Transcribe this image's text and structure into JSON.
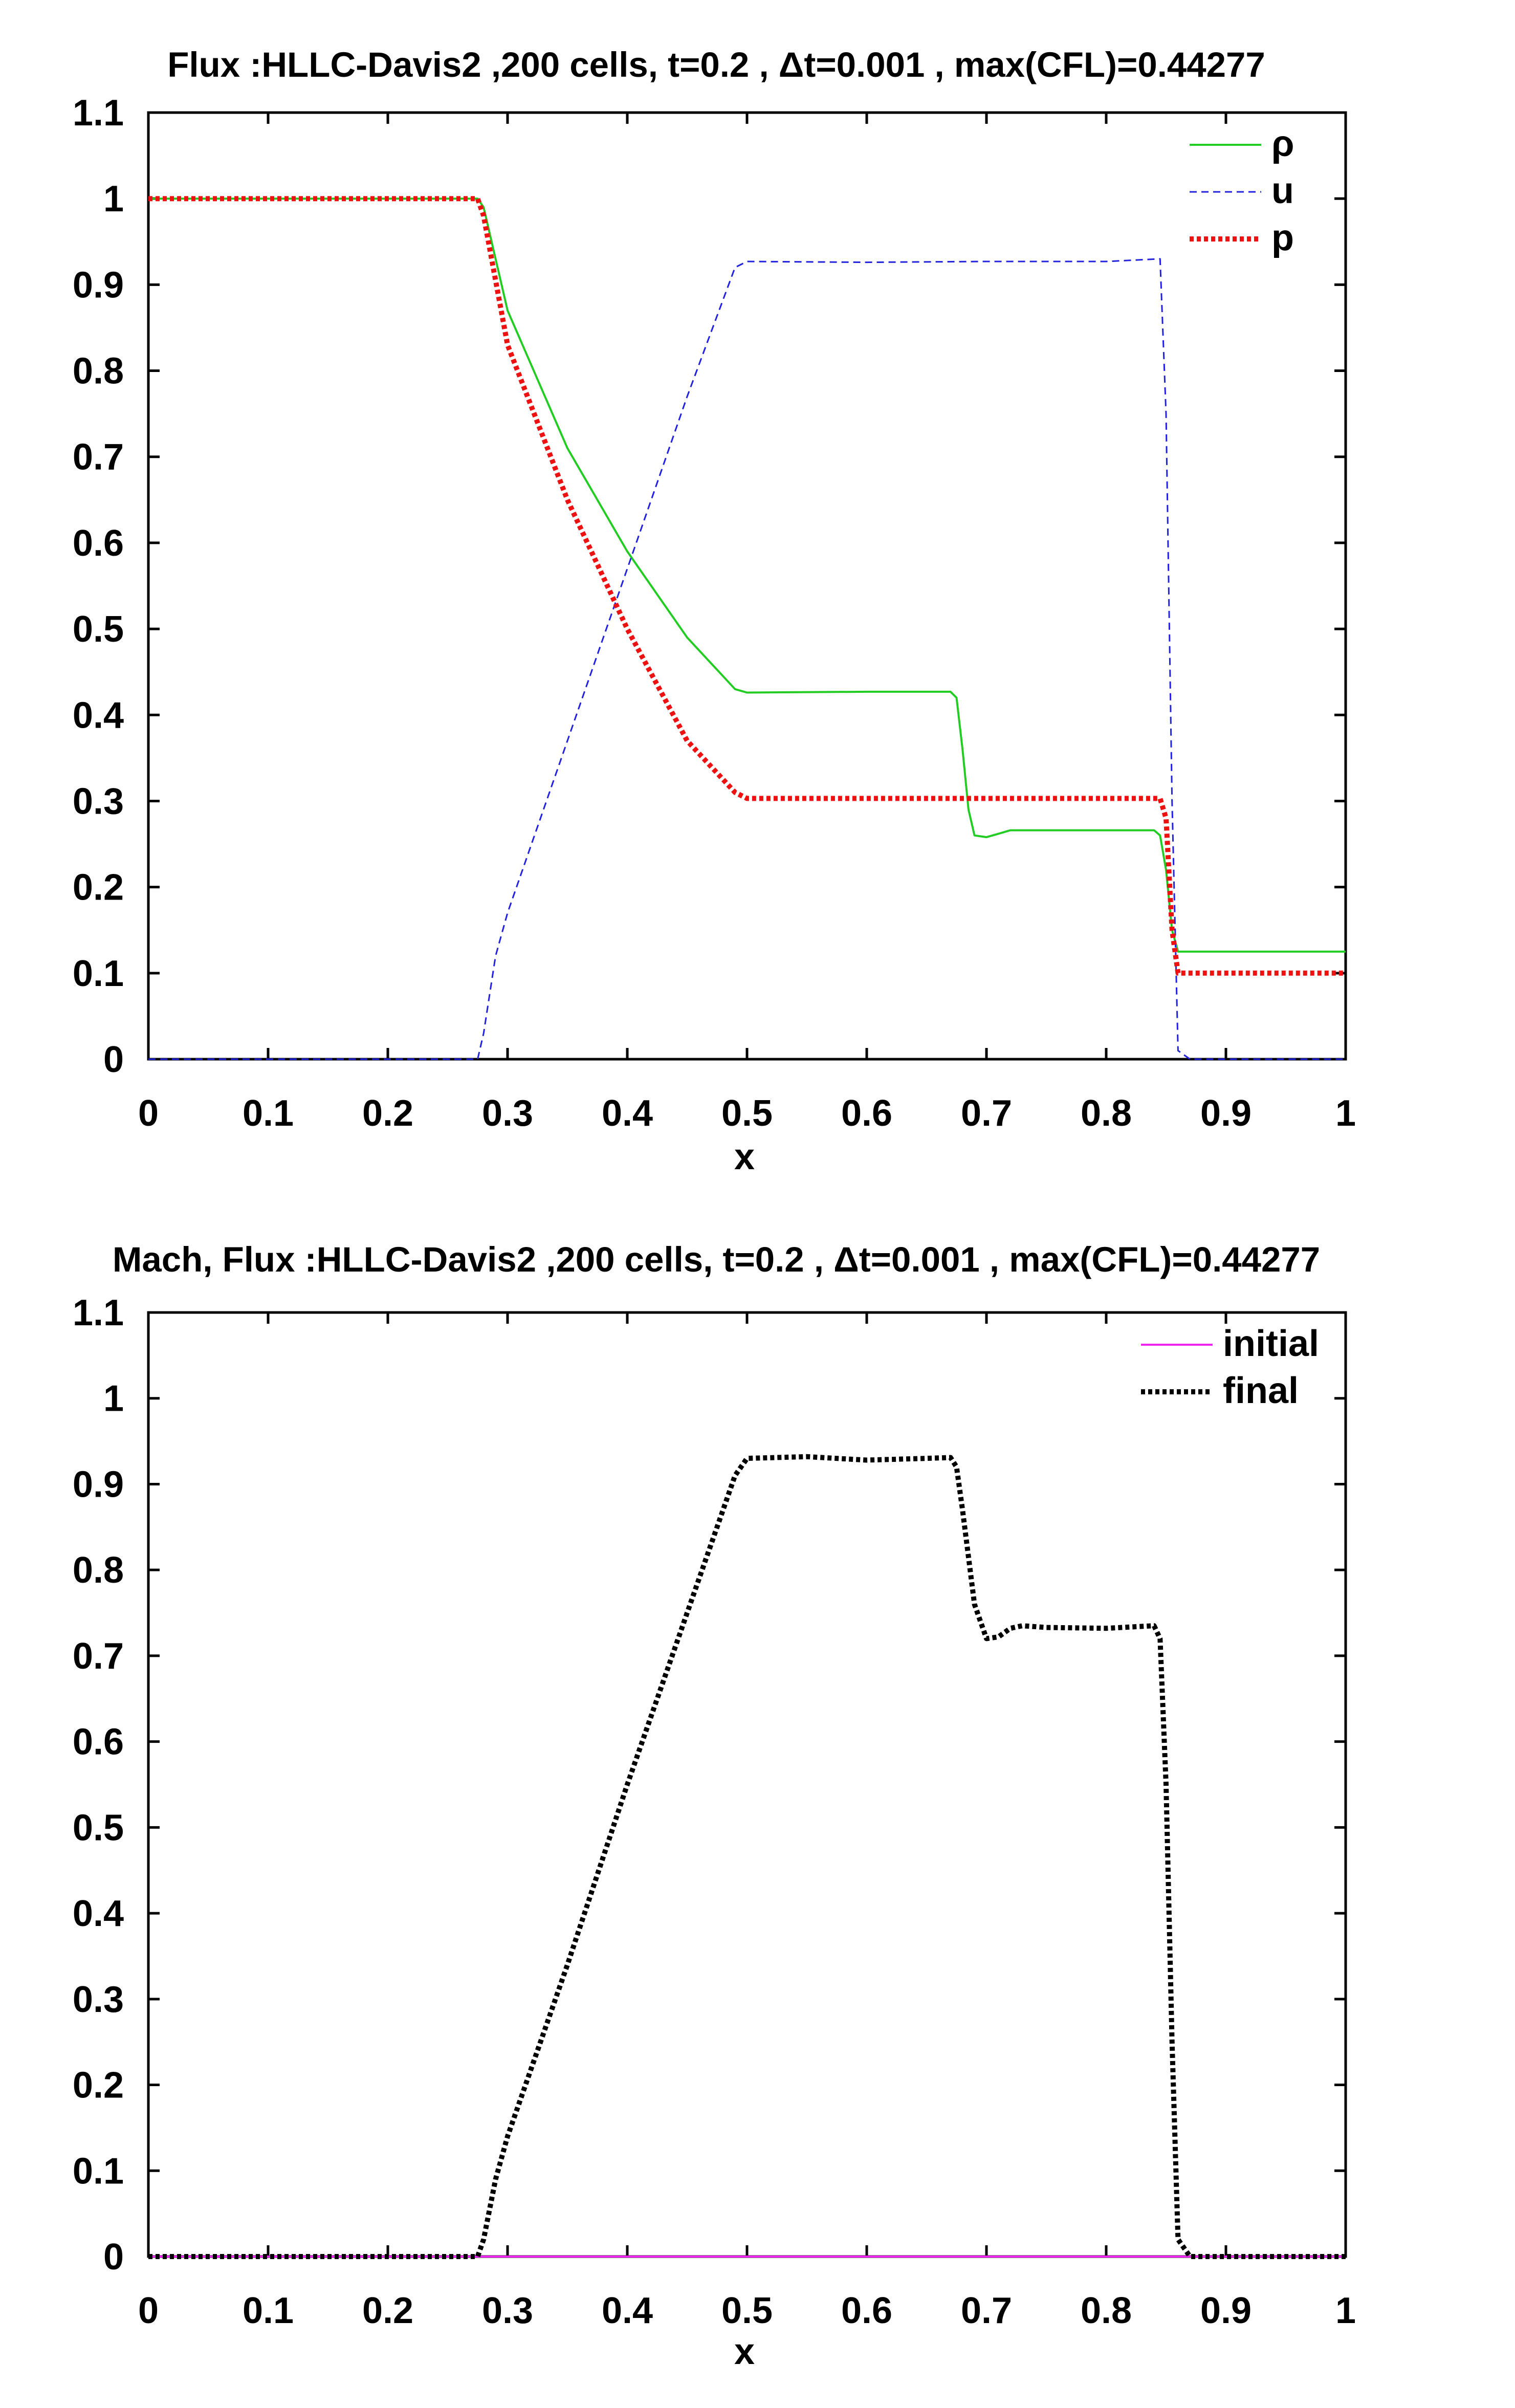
{
  "chart_data": [
    {
      "type": "line",
      "title": "Flux :HLLC-Davis2  ,200 cells, t=0.2 , Δt=0.001 , max(CFL)=0.44277",
      "xlabel": "x",
      "ylabel": "",
      "xlim": [
        0,
        1
      ],
      "ylim": [
        0,
        1.1
      ],
      "xticks": [
        "0",
        "0.1",
        "0.2",
        "0.3",
        "0.4",
        "0.5",
        "0.6",
        "0.7",
        "0.8",
        "0.9",
        "1"
      ],
      "yticks": [
        "0",
        "0.1",
        "0.2",
        "0.3",
        "0.4",
        "0.5",
        "0.6",
        "0.7",
        "0.8",
        "0.9",
        "1",
        "1.1"
      ],
      "legend_position": "top-right",
      "series": [
        {
          "name": "ρ",
          "color": "#22cc22",
          "style": "solid",
          "x": [
            0,
            0.275,
            0.28,
            0.29,
            0.3,
            0.35,
            0.4,
            0.45,
            0.49,
            0.5,
            0.6,
            0.67,
            0.675,
            0.68,
            0.685,
            0.69,
            0.7,
            0.71,
            0.72,
            0.75,
            0.84,
            0.845,
            0.85,
            0.855,
            0.86,
            0.9,
            1
          ],
          "y": [
            1,
            1,
            0.99,
            0.93,
            0.87,
            0.71,
            0.59,
            0.49,
            0.43,
            0.426,
            0.427,
            0.427,
            0.42,
            0.36,
            0.29,
            0.26,
            0.258,
            0.262,
            0.266,
            0.266,
            0.266,
            0.26,
            0.22,
            0.15,
            0.125,
            0.125,
            0.125
          ]
        },
        {
          "name": "u",
          "color": "#2222dd",
          "style": "dashed",
          "x": [
            0,
            0.275,
            0.28,
            0.29,
            0.3,
            0.35,
            0.4,
            0.45,
            0.49,
            0.5,
            0.6,
            0.7,
            0.8,
            0.845,
            0.85,
            0.855,
            0.86,
            0.87,
            1
          ],
          "y": [
            0,
            0,
            0.03,
            0.12,
            0.17,
            0.37,
            0.57,
            0.77,
            0.92,
            0.927,
            0.926,
            0.927,
            0.927,
            0.93,
            0.75,
            0.3,
            0.01,
            0,
            0
          ]
        },
        {
          "name": "p",
          "color": "#ee1111",
          "style": "dotted",
          "x": [
            0,
            0.275,
            0.28,
            0.3,
            0.35,
            0.4,
            0.45,
            0.49,
            0.5,
            0.6,
            0.7,
            0.8,
            0.845,
            0.85,
            0.855,
            0.86,
            0.9,
            1
          ],
          "y": [
            1,
            1,
            0.98,
            0.83,
            0.65,
            0.5,
            0.37,
            0.31,
            0.303,
            0.303,
            0.303,
            0.303,
            0.303,
            0.28,
            0.15,
            0.1,
            0.1,
            0.1
          ]
        }
      ]
    },
    {
      "type": "line",
      "title": "Mach, Flux :HLLC-Davis2 ,200 cells, t=0.2 , Δt=0.001 , max(CFL)=0.44277",
      "xlabel": "x",
      "ylabel": "",
      "xlim": [
        0,
        1
      ],
      "ylim": [
        0,
        1.1
      ],
      "xticks": [
        "0",
        "0.1",
        "0.2",
        "0.3",
        "0.4",
        "0.5",
        "0.6",
        "0.7",
        "0.8",
        "0.9",
        "1"
      ],
      "yticks": [
        "0",
        "0.1",
        "0.2",
        "0.3",
        "0.4",
        "0.5",
        "0.6",
        "0.7",
        "0.8",
        "0.9",
        "1",
        "1.1"
      ],
      "legend_position": "top-right",
      "series": [
        {
          "name": "initial",
          "color": "#ee22ee",
          "style": "solid",
          "x": [
            0,
            1
          ],
          "y": [
            0,
            0
          ]
        },
        {
          "name": "final",
          "color": "#000000",
          "style": "dotted",
          "x": [
            0,
            0.275,
            0.28,
            0.29,
            0.3,
            0.35,
            0.4,
            0.45,
            0.49,
            0.5,
            0.55,
            0.6,
            0.65,
            0.67,
            0.675,
            0.68,
            0.69,
            0.7,
            0.71,
            0.72,
            0.73,
            0.75,
            0.8,
            0.84,
            0.845,
            0.85,
            0.855,
            0.86,
            0.87,
            1
          ],
          "y": [
            0,
            0,
            0.02,
            0.09,
            0.14,
            0.34,
            0.55,
            0.75,
            0.91,
            0.93,
            0.932,
            0.928,
            0.93,
            0.931,
            0.92,
            0.87,
            0.76,
            0.72,
            0.722,
            0.732,
            0.735,
            0.733,
            0.732,
            0.735,
            0.72,
            0.55,
            0.25,
            0.02,
            0,
            0
          ]
        }
      ]
    }
  ]
}
